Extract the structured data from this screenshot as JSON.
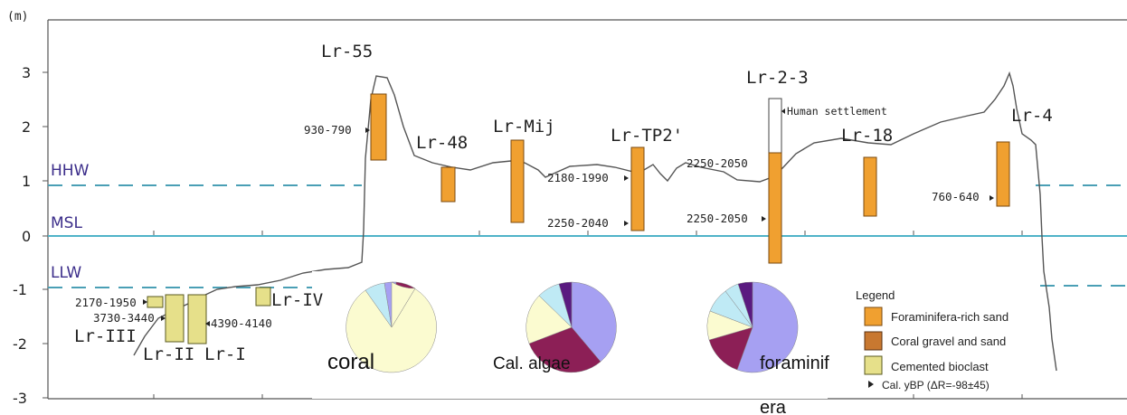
{
  "axis": {
    "unit": "(m)",
    "ticks": [
      "3",
      "2",
      "1",
      "0",
      "-1",
      "-2",
      "-3"
    ],
    "levels": {
      "hhw": "HHW",
      "msl": "MSL",
      "llw": "LLW"
    }
  },
  "cores": [
    {
      "id": "lr-iii",
      "label": "Lr-III"
    },
    {
      "id": "lr-ii",
      "label": "Lr-II"
    },
    {
      "id": "lr-i",
      "label": "Lr-I"
    },
    {
      "id": "lr-iv",
      "label": "Lr-IV"
    },
    {
      "id": "lr-55",
      "label": "Lr-55"
    },
    {
      "id": "lr-48",
      "label": "Lr-48"
    },
    {
      "id": "lr-mij",
      "label": "Lr-Mij"
    },
    {
      "id": "lr-tp2",
      "label": "Lr-TP2'"
    },
    {
      "id": "lr-2-3",
      "label": "Lr-2-3"
    },
    {
      "id": "lr-18",
      "label": "Lr-18"
    },
    {
      "id": "lr-4",
      "label": "Lr-4"
    }
  ],
  "ages": [
    {
      "id": "age-2170",
      "text": "2170-1950"
    },
    {
      "id": "age-3730",
      "text": "3730-3440"
    },
    {
      "id": "age-4390",
      "text": "4390-4140"
    },
    {
      "id": "age-930",
      "text": "930-790"
    },
    {
      "id": "age-2180",
      "text": "2180-1990"
    },
    {
      "id": "age-2250a",
      "text": "2250-2040"
    },
    {
      "id": "age-2250b",
      "text": "2250-2050"
    },
    {
      "id": "age-2250c",
      "text": "2250-2050"
    },
    {
      "id": "age-760",
      "text": "760-640"
    }
  ],
  "annotations": {
    "human": "Human settlement"
  },
  "pies": [
    {
      "id": "coral",
      "label": "coral"
    },
    {
      "id": "cal-algae",
      "label": "Cal. algae"
    },
    {
      "id": "foram",
      "label_line1": "foraminif",
      "label_line2": "era"
    }
  ],
  "legend": {
    "title": "Legend",
    "items": [
      "Foraminifera-rich sand",
      "Coral gravel and sand",
      "Cemented bioclast",
      "Cal. yBP (ΔR=-98±45)"
    ]
  },
  "colors": {
    "core_orange": "#f0a030",
    "cemented_yellow": "#e6e08a",
    "msl_line": "#4fb3c8",
    "level_dash": "#4a9fb5",
    "pie_cream": "#fbfbd0",
    "pie_purple": "#a6a0f2",
    "pie_maroon": "#8c1f56",
    "pie_lightblue": "#bfeaf5",
    "pie_darkpurple": "#5a1a80"
  }
}
